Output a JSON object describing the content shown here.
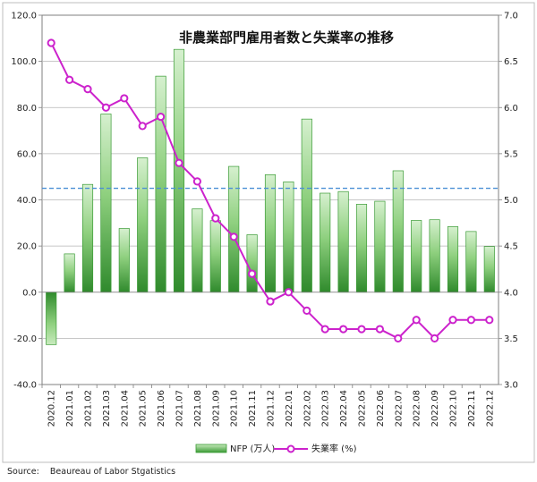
{
  "chart_data": {
    "type": "bar+line",
    "title": "非農業部門雇用者数と失業率の推移",
    "categories": [
      "2020.12",
      "2021.01",
      "2021.02",
      "2021.03",
      "2021.04",
      "2021.05",
      "2021.06",
      "2021.07",
      "2021.08",
      "2021.09",
      "2021.10",
      "2021.11",
      "2021.12",
      "2022.01",
      "2022.02",
      "2022.03",
      "2022.04",
      "2022.05",
      "2022.06",
      "2022.07",
      "2022.08",
      "2022.09",
      "2022.10",
      "2022.11",
      "2022.12"
    ],
    "series": [
      {
        "name": "NFP (万人)",
        "kind": "bar",
        "axis": "left",
        "values": [
          -22.7,
          16.6,
          46.7,
          77.2,
          27.6,
          58.2,
          93.6,
          105.2,
          36.1,
          31.0,
          54.5,
          24.9,
          50.9,
          47.8,
          75.0,
          42.9,
          43.6,
          38.1,
          39.4,
          52.6,
          31.1,
          31.4,
          28.4,
          26.3,
          19.8
        ],
        "color": "#3a9b35"
      },
      {
        "name": "失業率 (%)",
        "kind": "line",
        "axis": "right",
        "values": [
          6.7,
          6.3,
          6.2,
          6.0,
          6.1,
          5.8,
          5.9,
          5.4,
          5.2,
          4.8,
          4.6,
          4.2,
          3.9,
          4.0,
          3.8,
          3.6,
          3.6,
          3.6,
          3.6,
          3.5,
          3.7,
          3.5,
          3.7,
          3.7,
          3.7
        ],
        "color": "#cc22cc"
      }
    ],
    "y_left": {
      "min": -40,
      "max": 120,
      "step": 20,
      "ticks": [
        "-40.0",
        "-20.0",
        "0.0",
        "20.0",
        "40.0",
        "60.0",
        "80.0",
        "100.0",
        "120.0"
      ]
    },
    "y_right": {
      "min": 3.0,
      "max": 7.0,
      "step": 0.5,
      "ticks": [
        "3.0",
        "3.5",
        "4.0",
        "4.5",
        "5.0",
        "5.5",
        "6.0",
        "6.5",
        "7.0"
      ]
    },
    "reference_line": {
      "axis": "left",
      "value": 45.0,
      "style": "dashed",
      "color": "#4a8fd6"
    },
    "grid": true,
    "legend": "bottom-center"
  },
  "source_note": "Source:    Beaureau of Labor Stgatistics"
}
